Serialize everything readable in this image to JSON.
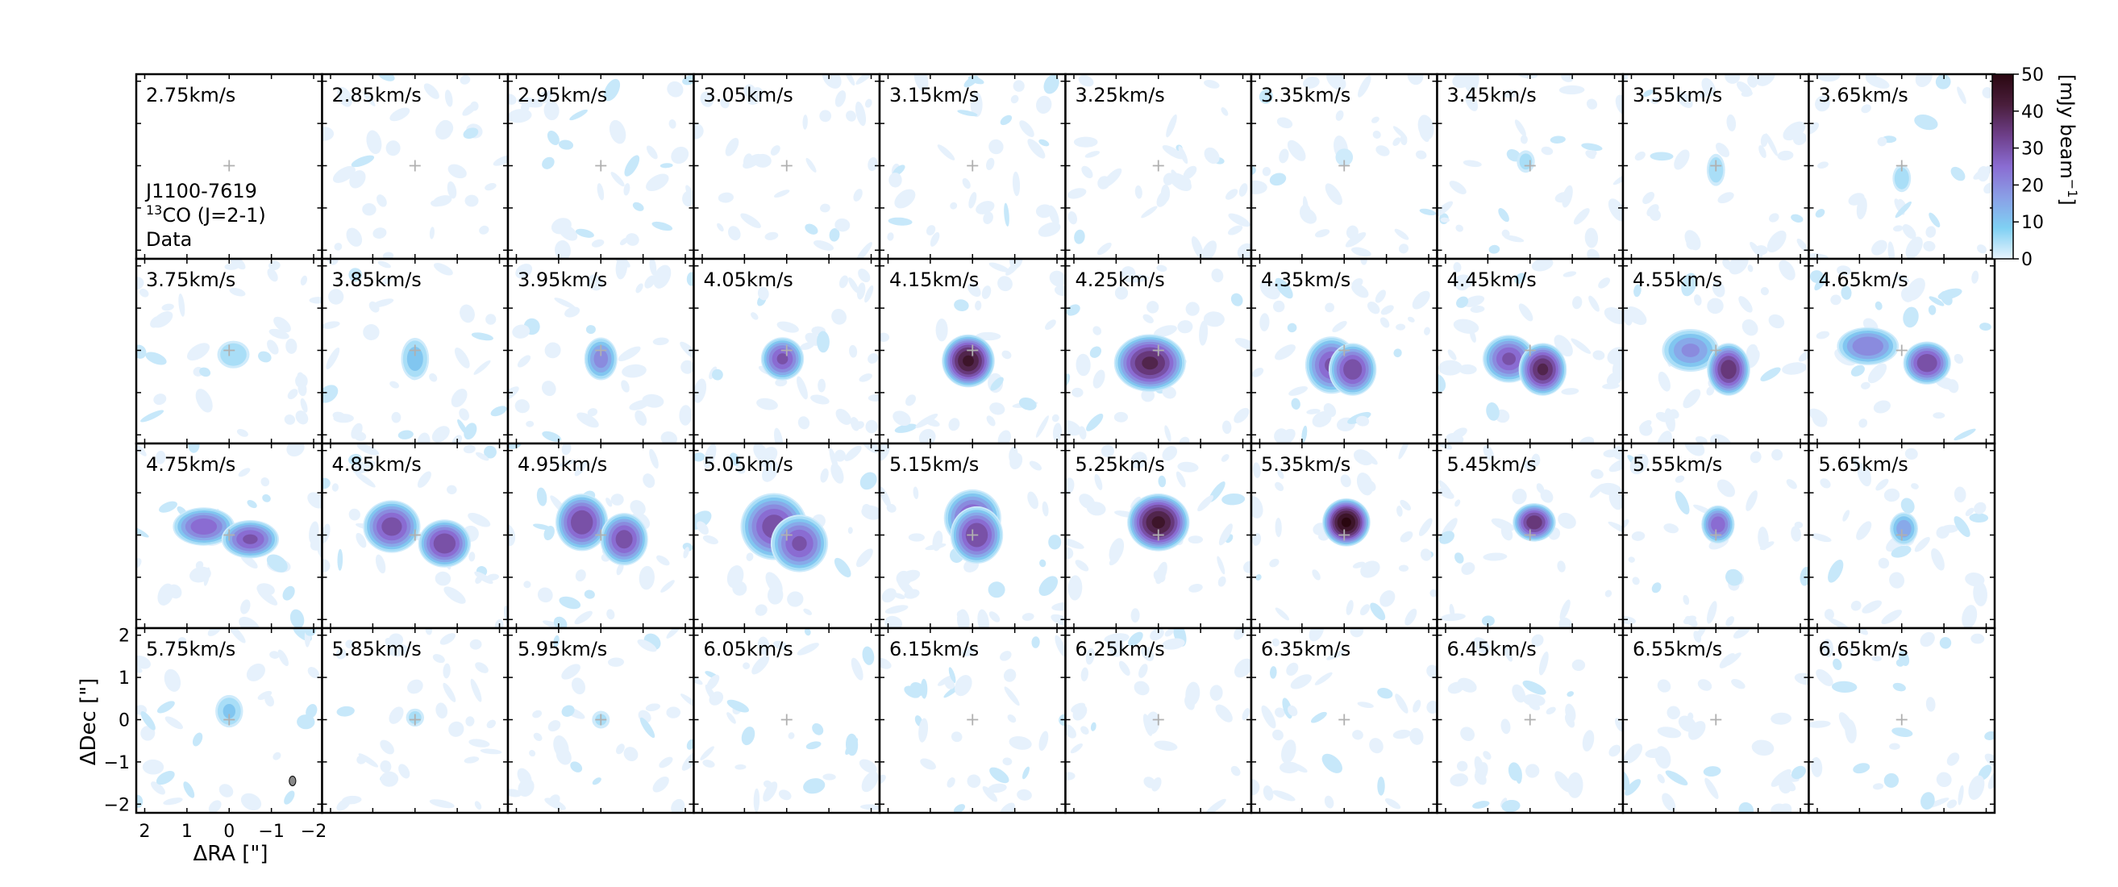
{
  "chart_data": {
    "type": "heatmap",
    "grid": {
      "rows": 4,
      "cols": 10
    },
    "velocity_unit": "km/s",
    "channels": [
      {
        "velocity": "2.75",
        "label": "2.75km/s",
        "peak": 0,
        "components": []
      },
      {
        "velocity": "2.85",
        "label": "2.85km/s",
        "peak": 0,
        "components": []
      },
      {
        "velocity": "2.95",
        "label": "2.95km/s",
        "peak": 0,
        "components": []
      },
      {
        "velocity": "3.05",
        "label": "3.05km/s",
        "peak": 0,
        "components": []
      },
      {
        "velocity": "3.15",
        "label": "3.15km/s",
        "peak": 0,
        "components": []
      },
      {
        "velocity": "3.25",
        "label": "3.25km/s",
        "peak": 0,
        "components": []
      },
      {
        "velocity": "3.35",
        "label": "3.35km/s",
        "peak": 4,
        "components": [
          {
            "dx": 0.0,
            "dy": 0.2,
            "rx": 0.2,
            "ry": 0.2,
            "peak": 4
          }
        ]
      },
      {
        "velocity": "3.45",
        "label": "3.45km/s",
        "peak": 6,
        "components": [
          {
            "dx": 0.1,
            "dy": 0.1,
            "rx": 0.2,
            "ry": 0.25,
            "peak": 6
          }
        ]
      },
      {
        "velocity": "3.55",
        "label": "3.55km/s",
        "peak": 8,
        "components": [
          {
            "dx": 0.0,
            "dy": -0.1,
            "rx": 0.2,
            "ry": 0.35,
            "peak": 8
          }
        ]
      },
      {
        "velocity": "3.65",
        "label": "3.65km/s",
        "peak": 8,
        "components": [
          {
            "dx": 0.0,
            "dy": -0.3,
            "rx": 0.2,
            "ry": 0.3,
            "peak": 8
          }
        ]
      },
      {
        "velocity": "3.75",
        "label": "3.75km/s",
        "peak": 9,
        "components": [
          {
            "dx": -0.1,
            "dy": -0.1,
            "rx": 0.35,
            "ry": 0.3,
            "peak": 9
          }
        ]
      },
      {
        "velocity": "3.85",
        "label": "3.85km/s",
        "peak": 12,
        "components": [
          {
            "dx": 0.0,
            "dy": -0.2,
            "rx": 0.3,
            "ry": 0.45,
            "peak": 12
          }
        ]
      },
      {
        "velocity": "3.95",
        "label": "3.95km/s",
        "peak": 22,
        "components": [
          {
            "dx": 0.0,
            "dy": -0.2,
            "rx": 0.35,
            "ry": 0.45,
            "peak": 22
          }
        ]
      },
      {
        "velocity": "4.05",
        "label": "4.05km/s",
        "peak": 30,
        "components": [
          {
            "dx": 0.1,
            "dy": -0.2,
            "rx": 0.45,
            "ry": 0.45,
            "peak": 30
          }
        ]
      },
      {
        "velocity": "4.15",
        "label": "4.15km/s",
        "peak": 45,
        "components": [
          {
            "dx": 0.1,
            "dy": -0.25,
            "rx": 0.55,
            "ry": 0.55,
            "peak": 45
          }
        ]
      },
      {
        "velocity": "4.25",
        "label": "4.25km/s",
        "peak": 40,
        "components": [
          {
            "dx": 0.2,
            "dy": -0.3,
            "rx": 0.75,
            "ry": 0.6,
            "peak": 40
          }
        ]
      },
      {
        "velocity": "4.35",
        "label": "4.35km/s",
        "peak": 33,
        "components": [
          {
            "dx": 0.3,
            "dy": -0.35,
            "rx": 0.55,
            "ry": 0.6,
            "peak": 30
          },
          {
            "dx": -0.2,
            "dy": -0.45,
            "rx": 0.5,
            "ry": 0.55,
            "peak": 33
          }
        ]
      },
      {
        "velocity": "4.45",
        "label": "4.45km/s",
        "peak": 40,
        "components": [
          {
            "dx": 0.5,
            "dy": -0.2,
            "rx": 0.55,
            "ry": 0.5,
            "peak": 30
          },
          {
            "dx": -0.3,
            "dy": -0.45,
            "rx": 0.5,
            "ry": 0.55,
            "peak": 40
          }
        ]
      },
      {
        "velocity": "4.55",
        "label": "4.55km/s",
        "peak": 38,
        "components": [
          {
            "dx": 0.6,
            "dy": 0.0,
            "rx": 0.6,
            "ry": 0.45,
            "peak": 20
          },
          {
            "dx": -0.3,
            "dy": -0.45,
            "rx": 0.45,
            "ry": 0.55,
            "peak": 38
          }
        ]
      },
      {
        "velocity": "4.65",
        "label": "4.65km/s",
        "peak": 34,
        "components": [
          {
            "dx": 0.8,
            "dy": 0.1,
            "rx": 0.65,
            "ry": 0.4,
            "peak": 24
          },
          {
            "dx": -0.6,
            "dy": -0.3,
            "rx": 0.5,
            "ry": 0.45,
            "peak": 34
          }
        ]
      },
      {
        "velocity": "4.75",
        "label": "4.75km/s",
        "peak": 30,
        "components": [
          {
            "dx": 0.6,
            "dy": 0.2,
            "rx": 0.65,
            "ry": 0.4,
            "peak": 28
          },
          {
            "dx": -0.5,
            "dy": -0.1,
            "rx": 0.6,
            "ry": 0.4,
            "peak": 30
          }
        ]
      },
      {
        "velocity": "4.85",
        "label": "4.85km/s",
        "peak": 34,
        "components": [
          {
            "dx": 0.55,
            "dy": 0.2,
            "rx": 0.6,
            "ry": 0.55,
            "peak": 32
          },
          {
            "dx": -0.7,
            "dy": -0.2,
            "rx": 0.55,
            "ry": 0.5,
            "peak": 34
          }
        ]
      },
      {
        "velocity": "4.95",
        "label": "4.95km/s",
        "peak": 34,
        "components": [
          {
            "dx": 0.45,
            "dy": 0.3,
            "rx": 0.55,
            "ry": 0.6,
            "peak": 34
          },
          {
            "dx": -0.55,
            "dy": -0.1,
            "rx": 0.5,
            "ry": 0.55,
            "peak": 32
          }
        ]
      },
      {
        "velocity": "5.05",
        "label": "5.05km/s",
        "peak": 32,
        "components": [
          {
            "dx": 0.3,
            "dy": 0.2,
            "rx": 0.7,
            "ry": 0.7,
            "peak": 32
          },
          {
            "dx": -0.3,
            "dy": -0.2,
            "rx": 0.6,
            "ry": 0.6,
            "peak": 30
          }
        ]
      },
      {
        "velocity": "5.15",
        "label": "5.15km/s",
        "peak": 34,
        "components": [
          {
            "dx": 0.0,
            "dy": 0.4,
            "rx": 0.6,
            "ry": 0.6,
            "peak": 30
          },
          {
            "dx": -0.1,
            "dy": 0.0,
            "rx": 0.55,
            "ry": 0.6,
            "peak": 34
          }
        ]
      },
      {
        "velocity": "5.25",
        "label": "5.25km/s",
        "peak": 45,
        "components": [
          {
            "dx": 0.0,
            "dy": 0.3,
            "rx": 0.65,
            "ry": 0.6,
            "peak": 45
          }
        ]
      },
      {
        "velocity": "5.35",
        "label": "5.35km/s",
        "peak": 50,
        "components": [
          {
            "dx": -0.05,
            "dy": 0.3,
            "rx": 0.5,
            "ry": 0.5,
            "peak": 50
          }
        ]
      },
      {
        "velocity": "5.45",
        "label": "5.45km/s",
        "peak": 38,
        "components": [
          {
            "dx": -0.1,
            "dy": 0.3,
            "rx": 0.45,
            "ry": 0.4,
            "peak": 38
          }
        ]
      },
      {
        "velocity": "5.55",
        "label": "5.55km/s",
        "peak": 28,
        "components": [
          {
            "dx": -0.05,
            "dy": 0.25,
            "rx": 0.35,
            "ry": 0.4,
            "peak": 28
          }
        ]
      },
      {
        "velocity": "5.65",
        "label": "5.65km/s",
        "peak": 18,
        "components": [
          {
            "dx": -0.05,
            "dy": 0.15,
            "rx": 0.3,
            "ry": 0.35,
            "peak": 18
          }
        ]
      },
      {
        "velocity": "5.75",
        "label": "5.75km/s",
        "peak": 10,
        "components": [
          {
            "dx": 0.0,
            "dy": 0.2,
            "rx": 0.3,
            "ry": 0.35,
            "peak": 10
          }
        ]
      },
      {
        "velocity": "5.85",
        "label": "5.85km/s",
        "peak": 6,
        "components": [
          {
            "dx": 0.0,
            "dy": 0.05,
            "rx": 0.2,
            "ry": 0.2,
            "peak": 6
          }
        ]
      },
      {
        "velocity": "5.95",
        "label": "5.95km/s",
        "peak": 5,
        "components": [
          {
            "dx": 0.0,
            "dy": 0.0,
            "rx": 0.2,
            "ry": 0.2,
            "peak": 5
          }
        ]
      },
      {
        "velocity": "6.05",
        "label": "6.05km/s",
        "peak": 0,
        "components": []
      },
      {
        "velocity": "6.15",
        "label": "6.15km/s",
        "peak": 0,
        "components": []
      },
      {
        "velocity": "6.25",
        "label": "6.25km/s",
        "peak": 0,
        "components": []
      },
      {
        "velocity": "6.35",
        "label": "6.35km/s",
        "peak": 0,
        "components": []
      },
      {
        "velocity": "6.45",
        "label": "6.45km/s",
        "peak": 0,
        "components": []
      },
      {
        "velocity": "6.55",
        "label": "6.55km/s",
        "peak": 0,
        "components": []
      },
      {
        "velocity": "6.65",
        "label": "6.65km/s",
        "peak": 0,
        "components": []
      }
    ],
    "annotation": {
      "source": "J1100-7619",
      "line_sup": "13",
      "line": "CO (J=2-1)",
      "kind": "Data"
    },
    "x_axis": {
      "label": "ΔRA [\"]",
      "lim": [
        2.2,
        -2.2
      ],
      "ticks": [
        2,
        1,
        0,
        -1,
        -2
      ],
      "tick_labels": [
        "2",
        "1",
        "0",
        "−1",
        "−2"
      ]
    },
    "y_axis": {
      "label": "ΔDec [\"]",
      "lim": [
        -2.2,
        2.2
      ],
      "ticks": [
        2,
        1,
        0,
        -1,
        -2
      ],
      "tick_labels": [
        "2",
        "1",
        "0",
        "−1",
        "−2"
      ]
    },
    "colorbar": {
      "label": "[mJy beam",
      "label_sup": "−1",
      "label_end": "]",
      "vmin": 0,
      "vmax": 50,
      "ticks": [
        0,
        10,
        20,
        30,
        40,
        50
      ],
      "tick_labels": [
        "0",
        "10",
        "20",
        "30",
        "40",
        "50"
      ],
      "stops": [
        "#e8f3fd",
        "#7fd0f3",
        "#8a9fe6",
        "#8a6cd2",
        "#6e3f8a",
        "#4a1e3c",
        "#2a0710"
      ]
    },
    "beam": {
      "dx": -1.5,
      "dy": -1.45,
      "major": 0.32,
      "minor": 0.22,
      "color": "#888888"
    },
    "center_marker_color": "#b0b0b0",
    "noise_color": "#e6f1fc",
    "noise_color_strong": "#c7e8fa"
  }
}
